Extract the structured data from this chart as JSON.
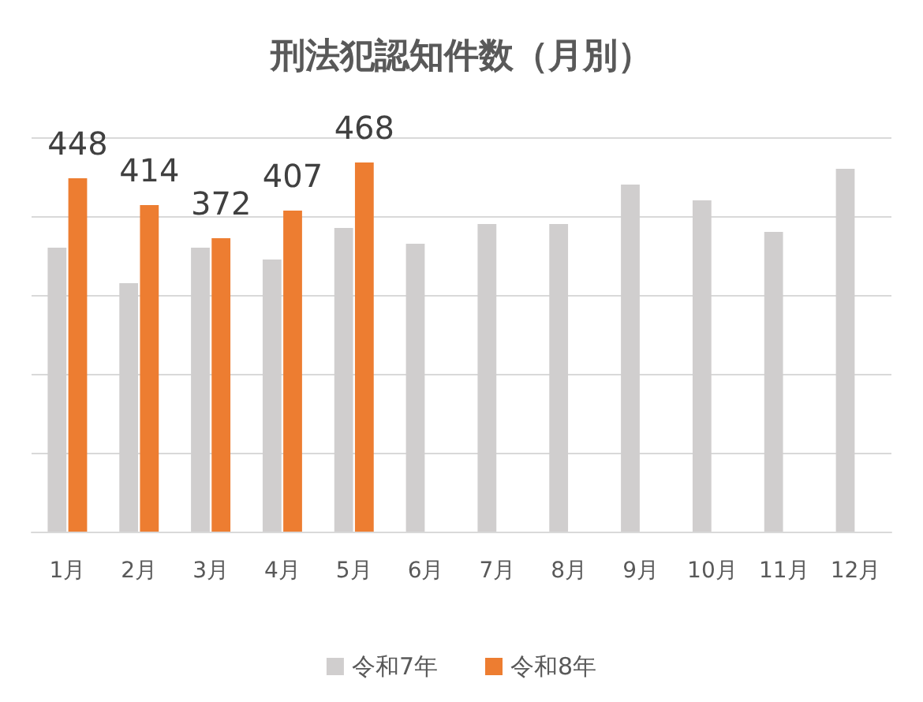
{
  "chart_data": {
    "type": "bar",
    "title": "刑法犯認知件数（月別）",
    "categories": [
      "1月",
      "2月",
      "3月",
      "4月",
      "5月",
      "6月",
      "7月",
      "8月",
      "9月",
      "10月",
      "11月",
      "12月"
    ],
    "series": [
      {
        "name": "令和7年",
        "color": "#d0cece",
        "values": [
          360,
          315,
          360,
          345,
          385,
          365,
          390,
          390,
          440,
          420,
          380,
          460
        ]
      },
      {
        "name": "令和8年",
        "color": "#ed7d31",
        "values": [
          448,
          414,
          372,
          407,
          468,
          null,
          null,
          null,
          null,
          null,
          null,
          null
        ],
        "value_labels": [
          "448",
          "414",
          "372",
          "407",
          "468",
          null,
          null,
          null,
          null,
          null,
          null,
          null
        ]
      }
    ],
    "ylim": [
      0,
      500
    ],
    "yticks": [
      {
        "value": 0,
        "label": null
      },
      {
        "value": 100,
        "label": null
      },
      {
        "value": 200,
        "label": null
      },
      {
        "value": 300,
        "label": null
      },
      {
        "value": 400,
        "label": null
      },
      {
        "value": 500,
        "label": null
      }
    ],
    "tick_labels": "x",
    "grid": "y",
    "legend": "bottom"
  }
}
